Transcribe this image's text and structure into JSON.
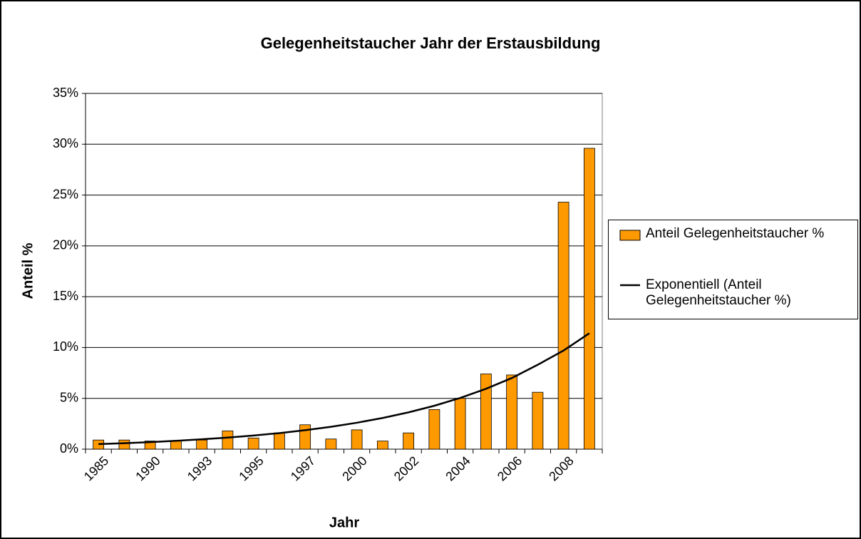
{
  "chart_data": {
    "type": "bar",
    "title": "Gelegenheitstaucher Jahr der Erstausbildung",
    "xlabel": "Jahr",
    "ylabel": "Anteil %",
    "categories": [
      "1985",
      null,
      "1990",
      null,
      "1993",
      null,
      "1995",
      null,
      "1997",
      null,
      "2000",
      null,
      "2002",
      null,
      "2004",
      null,
      "2006",
      null,
      "2008",
      null
    ],
    "series": [
      {
        "name": "Anteil Gelegenheitstaucher %",
        "color": "#ff9900",
        "type": "bar",
        "values": [
          0.9,
          0.9,
          0.8,
          0.8,
          0.9,
          1.8,
          1.1,
          1.6,
          2.4,
          1.0,
          1.9,
          0.8,
          1.6,
          3.9,
          5.0,
          7.4,
          7.3,
          5.6,
          24.3,
          29.6
        ]
      },
      {
        "name": "Exponentiell (Anteil Gelegenheitstaucher %)",
        "color": "#000000",
        "type": "line",
        "values": [
          0.5,
          0.59,
          0.69,
          0.82,
          0.97,
          1.14,
          1.34,
          1.58,
          1.87,
          2.2,
          2.6,
          3.07,
          3.62,
          4.27,
          5.04,
          5.94,
          7.0,
          8.3,
          9.7,
          11.4
        ]
      }
    ],
    "ylim": [
      0,
      35
    ],
    "yticks": [
      {
        "value": 0,
        "label": "0%"
      },
      {
        "value": 5,
        "label": "5%"
      },
      {
        "value": 10,
        "label": "10%"
      },
      {
        "value": 15,
        "label": "15%"
      },
      {
        "value": 20,
        "label": "20%"
      },
      {
        "value": 25,
        "label": "25%"
      },
      {
        "value": 30,
        "label": "30%"
      },
      {
        "value": 35,
        "label": "35%"
      }
    ],
    "grid": true,
    "legend": "right"
  }
}
